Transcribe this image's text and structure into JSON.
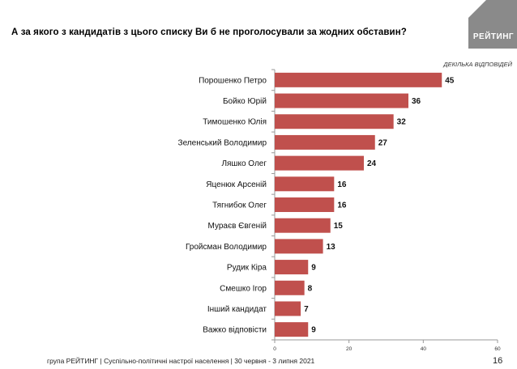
{
  "header": {
    "question": "А за якого з кандидатів з цього списку Ви б не проголосували за жодних обставин?",
    "logo_text": "РЕЙТИНГ",
    "note": "ДЕКІЛЬКА ВІДПОВІДЕЙ"
  },
  "footer": {
    "source": "група РЕЙТИНГ | Суспільно-політичні настрої населення  | 30 червня - 3 липня 2021",
    "page_number": "16"
  },
  "colors": {
    "bar": "#c0504d",
    "axis": "#999999",
    "logo": "#8a8a8a"
  },
  "chart_data": {
    "type": "bar",
    "orientation": "horizontal",
    "title": "",
    "xlabel": "",
    "ylabel": "",
    "categories": [
      "Порошенко Петро",
      "Бойко Юрій",
      "Тимошенко Юлія",
      "Зеленський Володимир",
      "Ляшко Олег",
      "Яценюк  Арсеній",
      "Тягнибок Олег",
      "Мураєв Євгеній",
      "Гройсман Володимир",
      "Рудик Кіра",
      "Смешко Ігор",
      "Інший кандидат",
      "Важко відповісти"
    ],
    "values": [
      45,
      36,
      32,
      27,
      24,
      16,
      16,
      15,
      13,
      9,
      8,
      7,
      9
    ],
    "xlim": [
      0,
      60
    ],
    "xticks": [
      0,
      20,
      40,
      60
    ],
    "grid": false,
    "legend": "none",
    "data_labels": true
  }
}
